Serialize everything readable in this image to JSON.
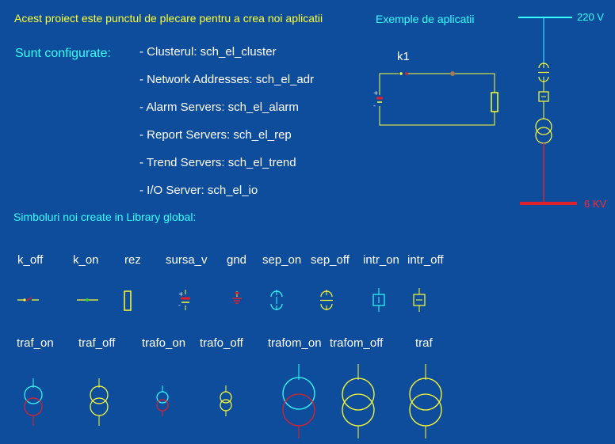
{
  "header": {
    "intro": "Acest proiect este punctul de plecare pentru a crea noi aplicatii",
    "examples_title": "Exemple de aplicatii"
  },
  "config": {
    "title": "Sunt configurate:",
    "items": [
      "- Clusterul:  sch_el_cluster",
      "- Network Addresses: sch_el_adr",
      "- Alarm Servers: sch_el_alarm",
      "- Report Servers: sch_el_rep",
      "- Trend Servers: sch_el_trend",
      "- I/O Server: sch_el_io"
    ]
  },
  "library": {
    "title": "Simboluri noi create in Library global:",
    "row1": [
      "k_off",
      "k_on",
      "rez",
      "sursa_v",
      "gnd",
      "sep_on",
      "sep_off",
      "intr_on",
      "intr_off"
    ],
    "row2": [
      "traf_on",
      "traf_off",
      "trafo_on",
      "trafo_off",
      "trafom_on",
      "trafom_off",
      "traf"
    ]
  },
  "example_circuit": {
    "switch_label": "k1"
  },
  "substation": {
    "high_voltage": "220 V",
    "low_voltage": "6 KV"
  },
  "colors": {
    "background": "#0e4d9c",
    "yellow": "#ffff33",
    "cyan": "#33ffff",
    "red": "#e0202a",
    "white": "#ffffff"
  }
}
